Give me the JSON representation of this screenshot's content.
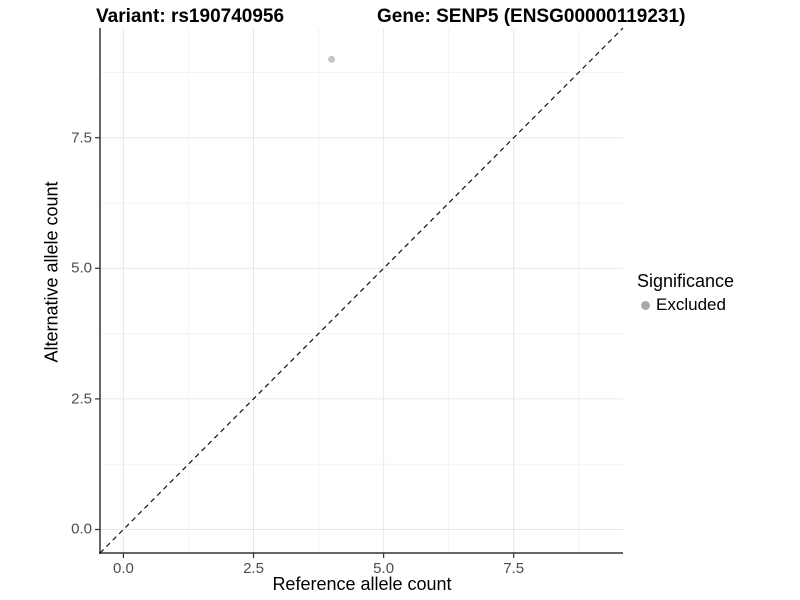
{
  "titles": {
    "left": "Variant: rs190740956",
    "right": "Gene: SENP5 (ENSG00000119231)"
  },
  "legend": {
    "title": "Significance",
    "items": [
      {
        "label": "Excluded",
        "color": "#a9a9a9"
      }
    ]
  },
  "chart_data": {
    "type": "scatter",
    "title": "Variant: rs190740956 / Gene: SENP5 (ENSG00000119231)",
    "xlabel": "Reference allele count",
    "ylabel": "Alternative allele count",
    "xlim": [
      -0.45,
      9.6
    ],
    "ylim": [
      -0.45,
      9.6
    ],
    "x_ticks": {
      "values": [
        0,
        2.5,
        5,
        7.5
      ],
      "labels": [
        "0.0",
        "2.5",
        "5.0",
        "7.5"
      ]
    },
    "y_ticks": {
      "values": [
        0,
        2.5,
        5,
        7.5
      ],
      "labels": [
        "0.0",
        "2.5",
        "5.0",
        "7.5"
      ]
    },
    "x_minor_ticks": [
      1.25,
      3.75,
      6.25,
      8.75
    ],
    "y_minor_ticks": [
      1.25,
      3.75,
      6.25,
      8.75
    ],
    "grid": "major+minor",
    "legend_position": "right",
    "series": [
      {
        "name": "Excluded",
        "color": "#c6c6c6",
        "points": [
          {
            "x": 4,
            "y": 9
          }
        ]
      }
    ],
    "reference_line": {
      "type": "identity",
      "slope": 1,
      "intercept": 0,
      "style": "dashed",
      "color": "#000000"
    }
  },
  "colors": {
    "major_grid": "#e7e7e7",
    "minor_grid": "#f3f3f3",
    "axis_line": "#333333",
    "tick_mark": "#333333",
    "tick_text": "#4d4d4d",
    "point_fill": "#c6c6c6",
    "dashed_line": "#111111"
  }
}
